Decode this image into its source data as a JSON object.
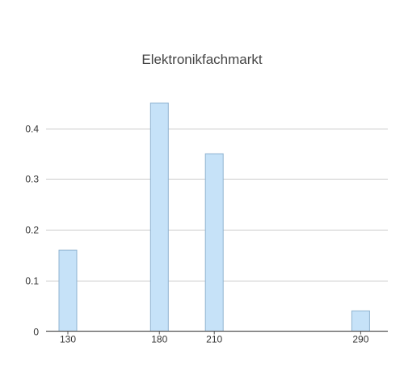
{
  "chart_data": {
    "type": "bar",
    "title": "Elektronikfachmarkt",
    "xlabel": "",
    "ylabel": "",
    "x": [
      130,
      180,
      210,
      290
    ],
    "values": [
      0.16,
      0.45,
      0.35,
      0.04
    ],
    "x_ticks": [
      "130",
      "180",
      "210",
      "290"
    ],
    "y_ticks": [
      "0",
      "0.1",
      "0.2",
      "0.3",
      "0.4"
    ],
    "y_tick_values": [
      0,
      0.1,
      0.2,
      0.3,
      0.4
    ],
    "ylim": [
      0,
      0.5
    ],
    "grid": true,
    "legend": false,
    "colors": {
      "bar_fill": "#c6e2f8",
      "bar_stroke": "#8fb3d0",
      "grid": "#cccccc",
      "axis": "#555555",
      "text": "#333333",
      "title": "#444444"
    }
  }
}
